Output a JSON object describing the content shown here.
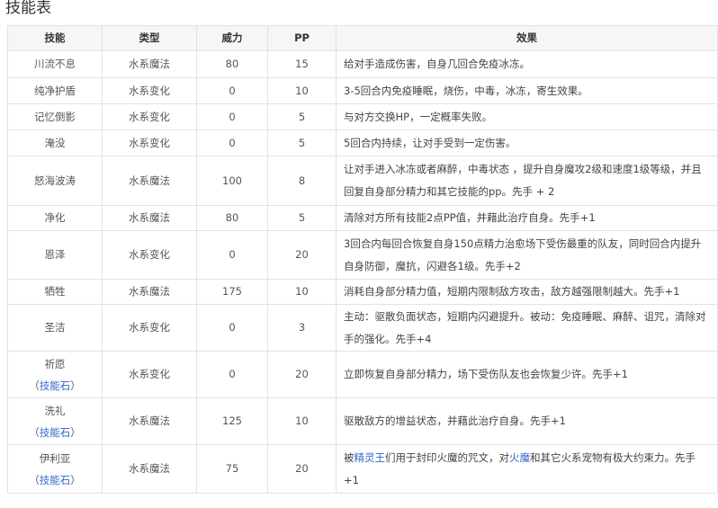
{
  "title": "技能表",
  "headers": [
    "技能",
    "类型",
    "威力",
    "PP",
    "效果"
  ],
  "rows": [
    {
      "name": "川流不息",
      "type": "水系魔法",
      "power": "80",
      "pp": "15",
      "effect": "给对手造成伤害，自身几回合免疫冰冻。",
      "h": 30
    },
    {
      "name": "纯净护盾",
      "type": "水系变化",
      "power": "0",
      "pp": "10",
      "effect": "3-5回合内免疫睡眠，烧伤，中毒，冰冻，寄生效果。",
      "h": 29
    },
    {
      "name": "记忆倒影",
      "type": "水系变化",
      "power": "0",
      "pp": "5",
      "effect": "与对方交换HP，一定概率失败。",
      "h": 29
    },
    {
      "name": "淹没",
      "type": "水系变化",
      "power": "0",
      "pp": "5",
      "effect": "5回合内持续，让对手受到一定伤害。",
      "h": 29
    },
    {
      "name": "怒海波涛",
      "type": "水系魔法",
      "power": "100",
      "pp": "8",
      "effect": "让对手进入冰冻或者麻醉，中毒状态 ，提升自身魔攻2级和速度1级等级，并且回复自身部分精力和其它技能的pp。先手 + 2",
      "h": 55
    },
    {
      "name": "净化",
      "type": "水系魔法",
      "power": "80",
      "pp": "5",
      "effect": "清除对方所有技能2点PP值，并藉此治疗自身。先手+1",
      "h": 28
    },
    {
      "name": "恩泽",
      "type": "水系变化",
      "power": "0",
      "pp": "20",
      "effect": "3回合内每回合恢复自身150点精力治愈场下受伤最重的队友，同时回合内提升自身防御，魔抗，闪避各1级。先手+2",
      "h": 54
    },
    {
      "name": "牺牲",
      "type": "水系魔法",
      "power": "175",
      "pp": "10",
      "effect": "消耗自身部分精力值，短期内限制敌方攻击，敌方越强限制越大。先手+1",
      "h": 28
    },
    {
      "name": "圣洁",
      "type": "水系变化",
      "power": "0",
      "pp": "3",
      "effect": "主动：驱散负面状态，短期内闪避提升。被动：免疫睡眠、麻醉、诅咒，清除对手的强化。先手+4",
      "h": 52
    },
    {
      "name": "祈愿",
      "sub": "技能石",
      "type": "水系变化",
      "power": "0",
      "pp": "20",
      "effect": "立即恢复自身部分精力，场下受伤队友也会恢复少许。先手+1",
      "h": 52
    },
    {
      "name": "洗礼",
      "sub": "技能石",
      "type": "水系魔法",
      "power": "125",
      "pp": "10",
      "effect": "驱散敌方的增益状态，并藉此治疗自身。先手+1",
      "h": 52
    },
    {
      "name": "伊利亚",
      "sub": "技能石",
      "type": "水系魔法",
      "power": "75",
      "pp": "20",
      "effect_parts": [
        {
          "t": "被"
        },
        {
          "t": "精灵王",
          "link": true
        },
        {
          "t": "们用于封印火魔的咒文，对"
        },
        {
          "t": "火魔",
          "link": true
        },
        {
          "t": "和其它火系宠物有极大约束力。先手+1"
        }
      ],
      "h": 54
    }
  ],
  "colors": {
    "link": "#3366cc",
    "header_bg": "#f6f6f6",
    "border": "#e2e2e2"
  }
}
